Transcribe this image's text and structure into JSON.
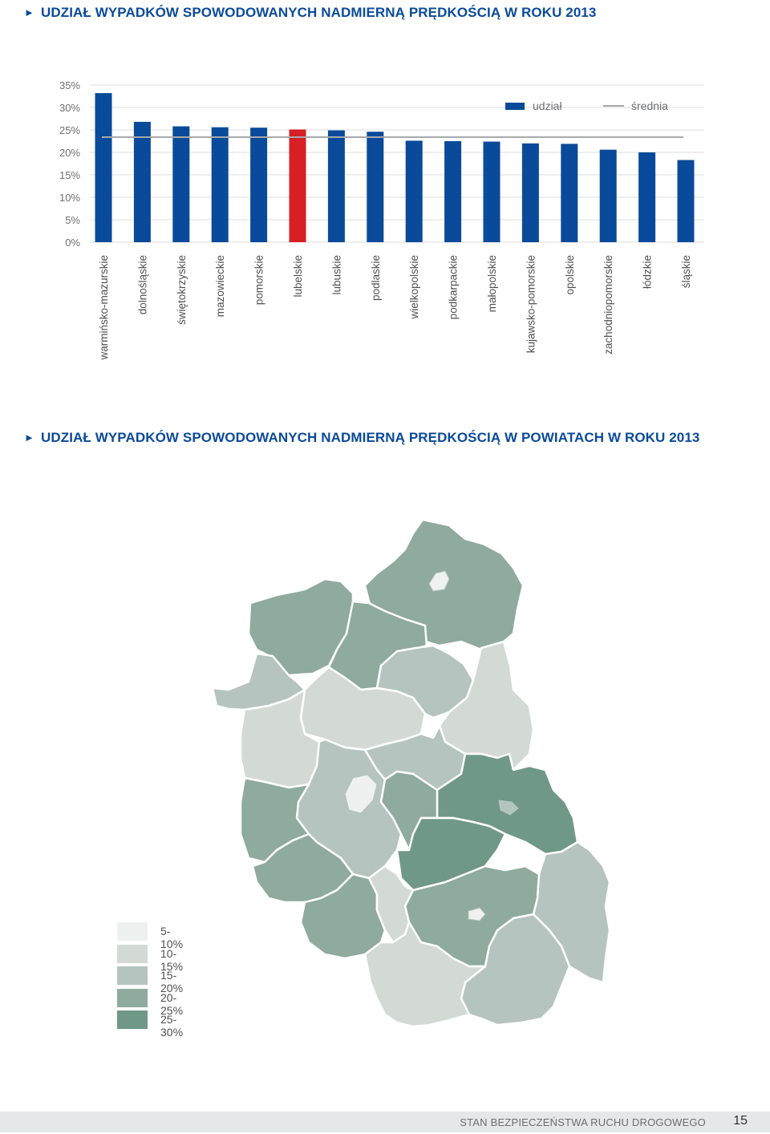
{
  "chart_title": "UDZIAŁ WYPADKÓW SPOWODOWANYCH NADMIERNĄ PRĘDKOŚCIĄ W ROKU 2013",
  "map_title": "UDZIAŁ WYPADKÓW SPOWODOWANYCH NADMIERNĄ PRĘDKOŚCIĄ W POWIATACH W ROKU 2013",
  "title_marker": "►",
  "chart_data": {
    "type": "bar",
    "title": "UDZIAŁ WYPADKÓW SPOWODOWANYCH NADMIERNĄ PRĘDKOŚCIĄ W ROKU 2013",
    "categories": [
      "warmińsko-mazurskie",
      "dolnośląskie",
      "świętokrzyskie",
      "mazowieckie",
      "pomorskie",
      "lubelskie",
      "lubuskie",
      "podlaskie",
      "wielkopolskie",
      "podkarpackie",
      "małopolskie",
      "kujawsko-pomorskie",
      "opolskie",
      "zachodniopomorskie",
      "łódzkie",
      "śląskie"
    ],
    "series": [
      {
        "name": "udział",
        "values": [
          33.2,
          26.8,
          25.8,
          25.6,
          25.5,
          25.1,
          24.9,
          24.6,
          22.6,
          22.5,
          22.4,
          22.0,
          21.9,
          20.6,
          20.0,
          18.3
        ]
      }
    ],
    "reference_line": {
      "name": "średnia",
      "value": 23.4
    },
    "highlight": {
      "category": "lubelskie",
      "color": "#d71f26"
    },
    "bar_color": "#0a4a9a",
    "line_color": "#a7a9ac",
    "ylim": [
      0,
      35
    ],
    "yticks": [
      0,
      5,
      10,
      15,
      20,
      25,
      30,
      35
    ],
    "ytick_labels": [
      "0%",
      "5%",
      "10%",
      "15%",
      "20%",
      "25%",
      "30%",
      "35%"
    ],
    "grid": true,
    "legend_position": "top-right",
    "xlabel": "",
    "ylabel": ""
  },
  "map_legend": [
    {
      "label": "5-10%",
      "color": "#eff1f0"
    },
    {
      "label": "10-15%",
      "color": "#d3dad6"
    },
    {
      "label": "15-20%",
      "color": "#b5c4be"
    },
    {
      "label": "20-25%",
      "color": "#8faa9f"
    },
    {
      "label": "25-30%",
      "color": "#6f9888"
    }
  ],
  "footer": {
    "text": "STAN BEZPIECZEŃSTWA RUCHU DROGOWEGO",
    "page_number": "15"
  }
}
